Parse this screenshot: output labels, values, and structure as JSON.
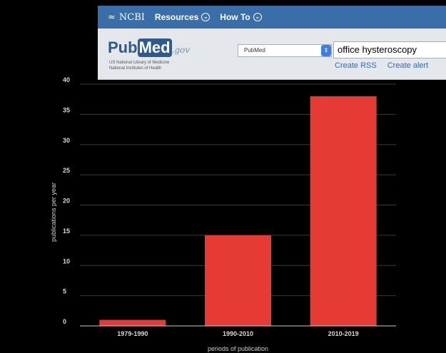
{
  "header": {
    "ncbi_label": "NCBI",
    "resources_label": "Resources",
    "howto_label": "How To",
    "pubmed_logo_a": "Pub",
    "pubmed_logo_b": "Med",
    "pubmed_logo_gov": ".gov",
    "subtitle_line1": "US National Library of Medicine",
    "subtitle_line2": "National Institutes of Health",
    "db_selected": "PubMed",
    "search_value": "office hysteroscopy",
    "link_rss": "Create RSS",
    "link_alert": "Create alert"
  },
  "chart_data": {
    "type": "bar",
    "categories": [
      "1979-1990",
      "1990-2010",
      "2010-2019"
    ],
    "values": [
      1,
      15,
      38
    ],
    "title": "",
    "xlabel": "periods of publication",
    "ylabel": "publications per year",
    "ylim": [
      0,
      40
    ],
    "yticks": [
      0,
      5,
      10,
      15,
      20,
      25,
      30,
      35,
      40
    ],
    "grid": true,
    "bar_color": "#e53b34",
    "grid_color": "#3a3a3a",
    "background": "#000000"
  }
}
